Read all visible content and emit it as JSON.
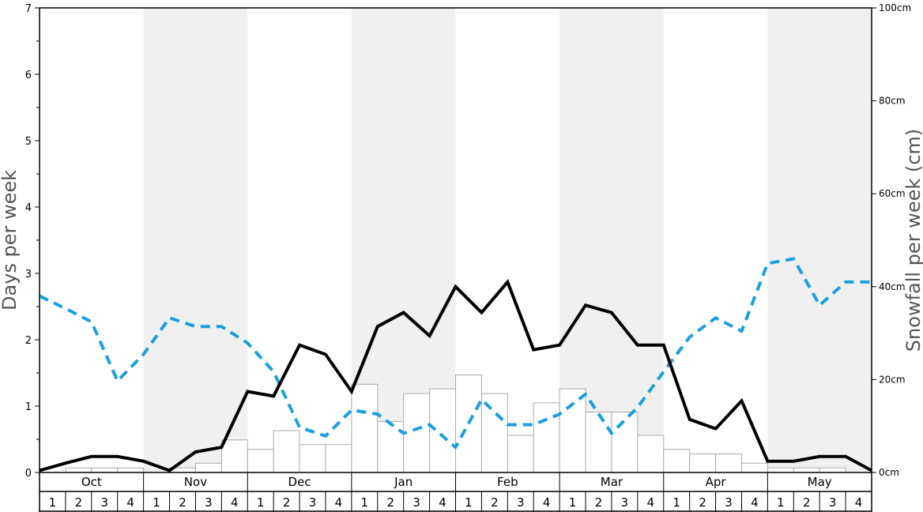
{
  "chart_data": {
    "type": "bar",
    "months": [
      "Oct",
      "Nov",
      "Dec",
      "Jan",
      "Feb",
      "Mar",
      "Apr",
      "May"
    ],
    "weeks": [
      "1",
      "2",
      "3",
      "4"
    ],
    "left_axis": {
      "label": "Days per week",
      "ylim": [
        0,
        7
      ],
      "ticks": [
        "0",
        "1",
        "2",
        "3",
        "4",
        "5",
        "6",
        "7"
      ]
    },
    "right_axis": {
      "label": "Snowfall per week (cm)",
      "ylim": [
        0,
        100
      ],
      "ticks": [
        "0cm",
        "20cm",
        "40cm",
        "60cm",
        "80cm",
        "100cm"
      ]
    },
    "snowfall_bars_cm": [
      0,
      1,
      1,
      1,
      0,
      1,
      2,
      7,
      5,
      9,
      6,
      6,
      19,
      11,
      17,
      18,
      21,
      17,
      8,
      15,
      18,
      13,
      13,
      8,
      5,
      4,
      4,
      2,
      1,
      1,
      1,
      0
    ],
    "black_line_days": [
      0.03,
      0.14,
      0.24,
      0.24,
      0.17,
      0.03,
      0.31,
      0.38,
      1.22,
      1.15,
      1.92,
      1.78,
      1.22,
      2.2,
      2.41,
      2.06,
      2.8,
      2.41,
      2.87,
      1.85,
      1.92,
      2.52,
      2.41,
      1.92,
      1.92,
      0.8,
      0.66,
      1.08,
      0.17,
      0.17,
      0.24,
      0.24,
      0.03
    ],
    "blue_dashed_line_days": [
      2.66,
      2.47,
      2.27,
      1.38,
      1.78,
      2.33,
      2.2,
      2.2,
      1.95,
      1.52,
      0.68,
      0.55,
      0.94,
      0.88,
      0.59,
      0.72,
      0.38,
      1.1,
      0.72,
      0.72,
      0.88,
      1.18,
      0.59,
      0.98,
      1.52,
      2.04,
      2.33,
      2.13,
      3.15,
      3.22,
      2.52,
      2.87,
      2.87
    ],
    "colors": {
      "black_line": "#000000",
      "blue_dashed_line": "#1a9fe0",
      "bar_fill": "#ffffff",
      "bar_stroke": "#aaaaaa",
      "shade": "#f0f0f0"
    }
  }
}
